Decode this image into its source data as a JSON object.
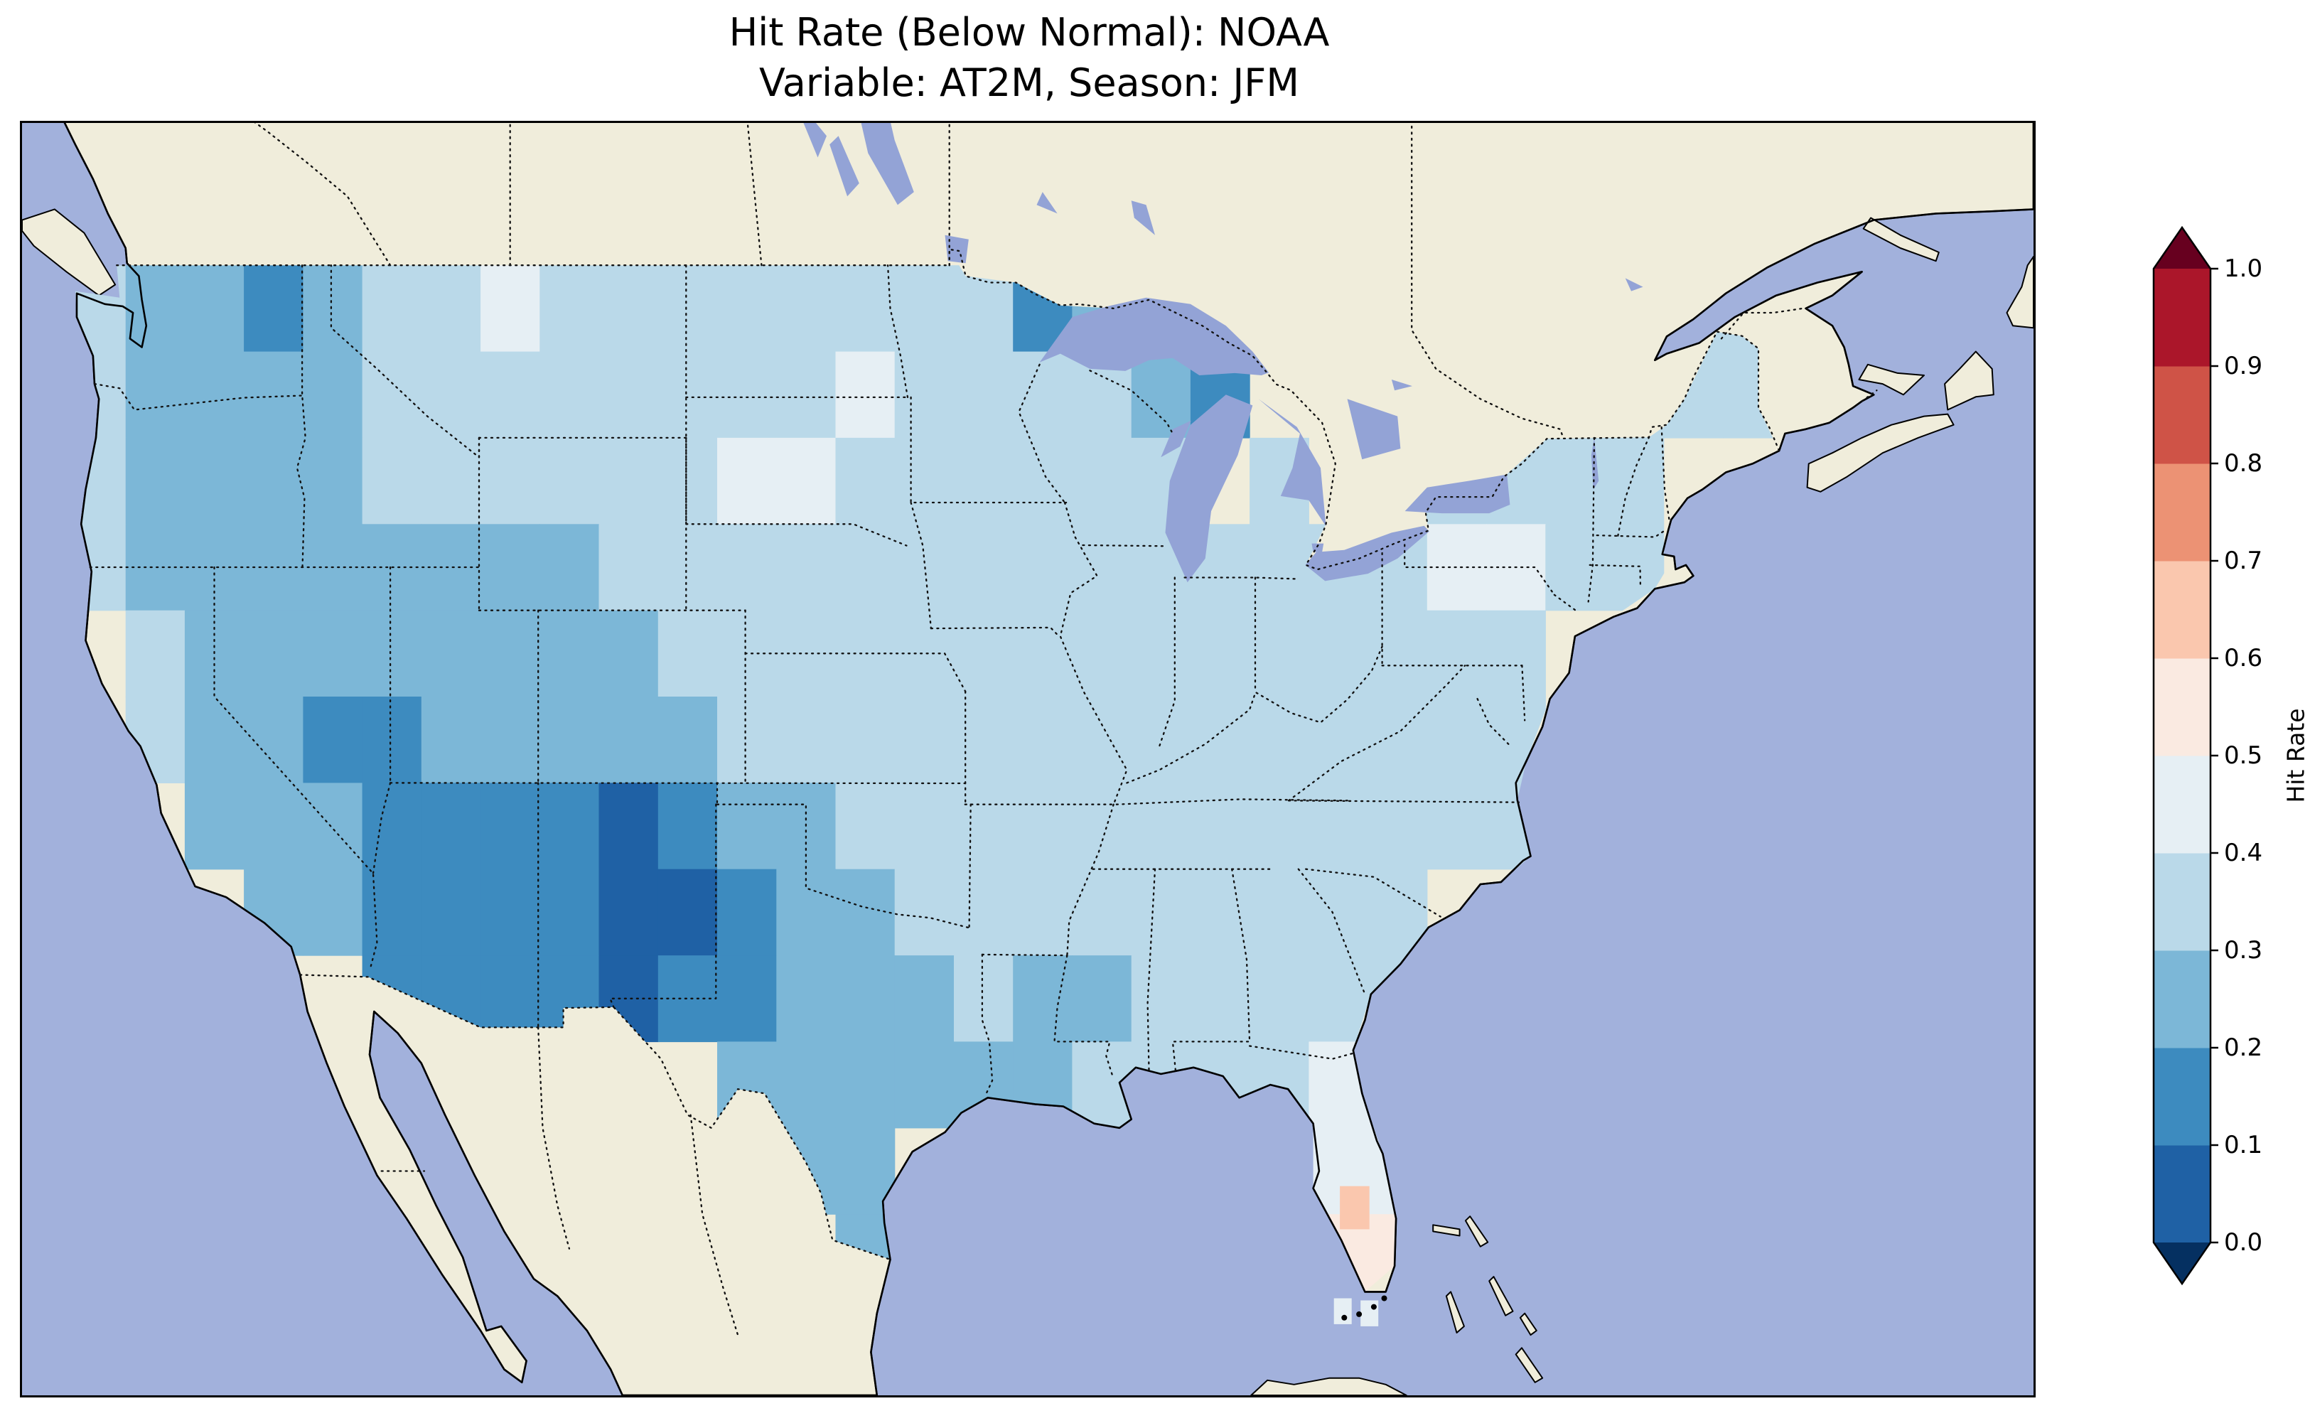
{
  "title": {
    "line1": "Hit Rate (Below Normal): NOAA",
    "line2": "Variable: AT2M, Season: JFM"
  },
  "colorbar": {
    "label": "Hit Rate",
    "tick_labels": [
      "1.0",
      "0.9",
      "0.8",
      "0.7",
      "0.6",
      "0.5",
      "0.4",
      "0.3",
      "0.2",
      "0.1",
      "0.0"
    ],
    "bin_colors_low_to_high": [
      "#1f61a5",
      "#3d8bbf",
      "#7cb7d7",
      "#bad9e9",
      "#e6eff4",
      "#faeae1",
      "#fac7ae",
      "#ec9274",
      "#cf5347",
      "#ab162a"
    ],
    "under_color": "#053061",
    "over_color": "#67001f",
    "outline_color": "#000000"
  },
  "map": {
    "ocean_color": "#a2b1dc",
    "land_color": "#f0eddb",
    "lake_color": "#93a3d6",
    "coastline_color": "#000000",
    "border_line_color": "#111111",
    "border_style": "dotted"
  },
  "chart_data": {
    "type": "heatmap",
    "title": "Hit Rate (Below Normal): NOAA",
    "subtitle": "Variable: AT2M, Season: JFM",
    "metric": "Hit Rate",
    "category": "Below Normal",
    "source": "NOAA",
    "variable": "AT2M",
    "season": "JFM",
    "region": "Contiguous United States",
    "value_range": [
      0.0,
      1.0
    ],
    "legend_position": "right",
    "grid": {
      "lon_west_edge_start": -125,
      "lat_north_edge_start": 49,
      "cell_size_deg": 2,
      "ncols": 29,
      "nrows": 12,
      "values": [
        [
          0.3,
          0.28,
          0.22,
          0.18,
          0.25,
          0.3,
          0.32,
          0.45,
          0.33,
          0.35,
          0.35,
          0.35,
          0.36,
          0.35,
          0.35,
          0.32,
          0.18,
          0.28,
          null,
          null,
          null,
          null,
          null,
          null,
          null,
          null,
          0.35,
          0.35,
          0.34
        ],
        [
          0.3,
          0.28,
          0.24,
          0.25,
          0.28,
          0.3,
          0.32,
          0.33,
          0.34,
          0.35,
          0.36,
          0.36,
          0.37,
          0.42,
          0.37,
          0.35,
          0.33,
          0.3,
          0.28,
          0.18,
          null,
          null,
          null,
          null,
          0.34,
          0.35,
          0.35,
          0.34,
          0.33
        ],
        [
          0.3,
          0.29,
          0.28,
          0.28,
          0.29,
          0.3,
          0.3,
          0.31,
          0.33,
          0.35,
          0.37,
          0.46,
          0.4,
          0.37,
          0.36,
          0.35,
          0.33,
          0.31,
          0.3,
          null,
          0.3,
          null,
          0.32,
          0.33,
          0.34,
          0.35,
          0.35,
          null,
          null
        ],
        [
          0.3,
          0.28,
          0.25,
          0.24,
          0.22,
          0.24,
          0.24,
          0.26,
          0.28,
          0.3,
          0.32,
          0.33,
          0.34,
          0.34,
          0.35,
          0.35,
          0.34,
          0.33,
          0.32,
          0.32,
          0.32,
          0.33,
          0.34,
          0.46,
          0.4,
          0.35,
          0.34,
          null,
          null
        ],
        [
          null,
          0.33,
          0.26,
          0.22,
          0.22,
          0.22,
          0.22,
          0.24,
          0.25,
          0.27,
          0.3,
          0.31,
          0.32,
          0.33,
          0.33,
          0.34,
          0.33,
          0.33,
          0.33,
          0.33,
          0.33,
          0.33,
          0.34,
          0.35,
          0.35,
          null,
          null,
          null,
          null
        ],
        [
          null,
          0.32,
          0.25,
          0.2,
          0.18,
          0.18,
          0.2,
          0.22,
          0.22,
          0.24,
          0.27,
          0.3,
          0.31,
          0.32,
          0.33,
          0.33,
          0.33,
          0.32,
          0.33,
          0.33,
          0.33,
          0.34,
          0.35,
          0.35,
          0.35,
          null,
          null,
          null,
          null
        ],
        [
          null,
          null,
          0.28,
          0.24,
          0.2,
          0.18,
          0.18,
          0.15,
          0.15,
          0.08,
          0.15,
          0.22,
          0.27,
          0.3,
          0.31,
          0.32,
          0.32,
          0.33,
          0.33,
          0.33,
          0.33,
          0.34,
          0.34,
          0.35,
          0.35,
          null,
          null,
          null,
          null
        ],
        [
          null,
          null,
          null,
          0.27,
          0.2,
          0.16,
          0.16,
          0.15,
          0.15,
          0.08,
          0.08,
          0.18,
          0.24,
          0.28,
          0.3,
          0.31,
          0.32,
          0.32,
          0.33,
          0.33,
          0.33,
          0.33,
          0.34,
          null,
          null,
          null,
          null,
          null,
          null
        ],
        [
          null,
          null,
          null,
          null,
          null,
          0.18,
          0.16,
          0.15,
          0.12,
          0.08,
          0.12,
          0.16,
          0.22,
          0.27,
          0.29,
          0.3,
          0.2,
          0.2,
          0.3,
          0.32,
          0.33,
          0.33,
          0.34,
          null,
          null,
          null,
          null,
          null,
          null
        ],
        [
          null,
          null,
          null,
          null,
          null,
          null,
          null,
          null,
          null,
          null,
          null,
          0.22,
          0.25,
          0.27,
          0.28,
          0.26,
          0.28,
          0.3,
          0.31,
          0.33,
          0.34,
          0.42,
          0.44,
          null,
          null,
          null,
          null,
          null,
          null
        ],
        [
          null,
          null,
          null,
          null,
          null,
          null,
          null,
          null,
          null,
          null,
          null,
          null,
          0.2,
          0.22,
          null,
          null,
          null,
          null,
          null,
          null,
          null,
          0.46,
          0.48,
          null,
          null,
          null,
          null,
          null,
          null
        ],
        [
          null,
          null,
          null,
          null,
          null,
          null,
          null,
          null,
          null,
          null,
          null,
          null,
          null,
          0.24,
          null,
          null,
          null,
          null,
          null,
          null,
          null,
          0.5,
          0.55,
          null,
          null,
          null,
          null,
          null,
          null
        ]
      ]
    },
    "extra_cells": [
      {
        "lon": -81.95,
        "lat": 27.65,
        "size": 1.0,
        "value": 0.63
      },
      {
        "lon": -82.15,
        "lat": 25.05,
        "size": 0.6,
        "value": 0.47
      },
      {
        "lon": -81.25,
        "lat": 25.0,
        "size": 0.6,
        "value": 0.47
      }
    ]
  }
}
